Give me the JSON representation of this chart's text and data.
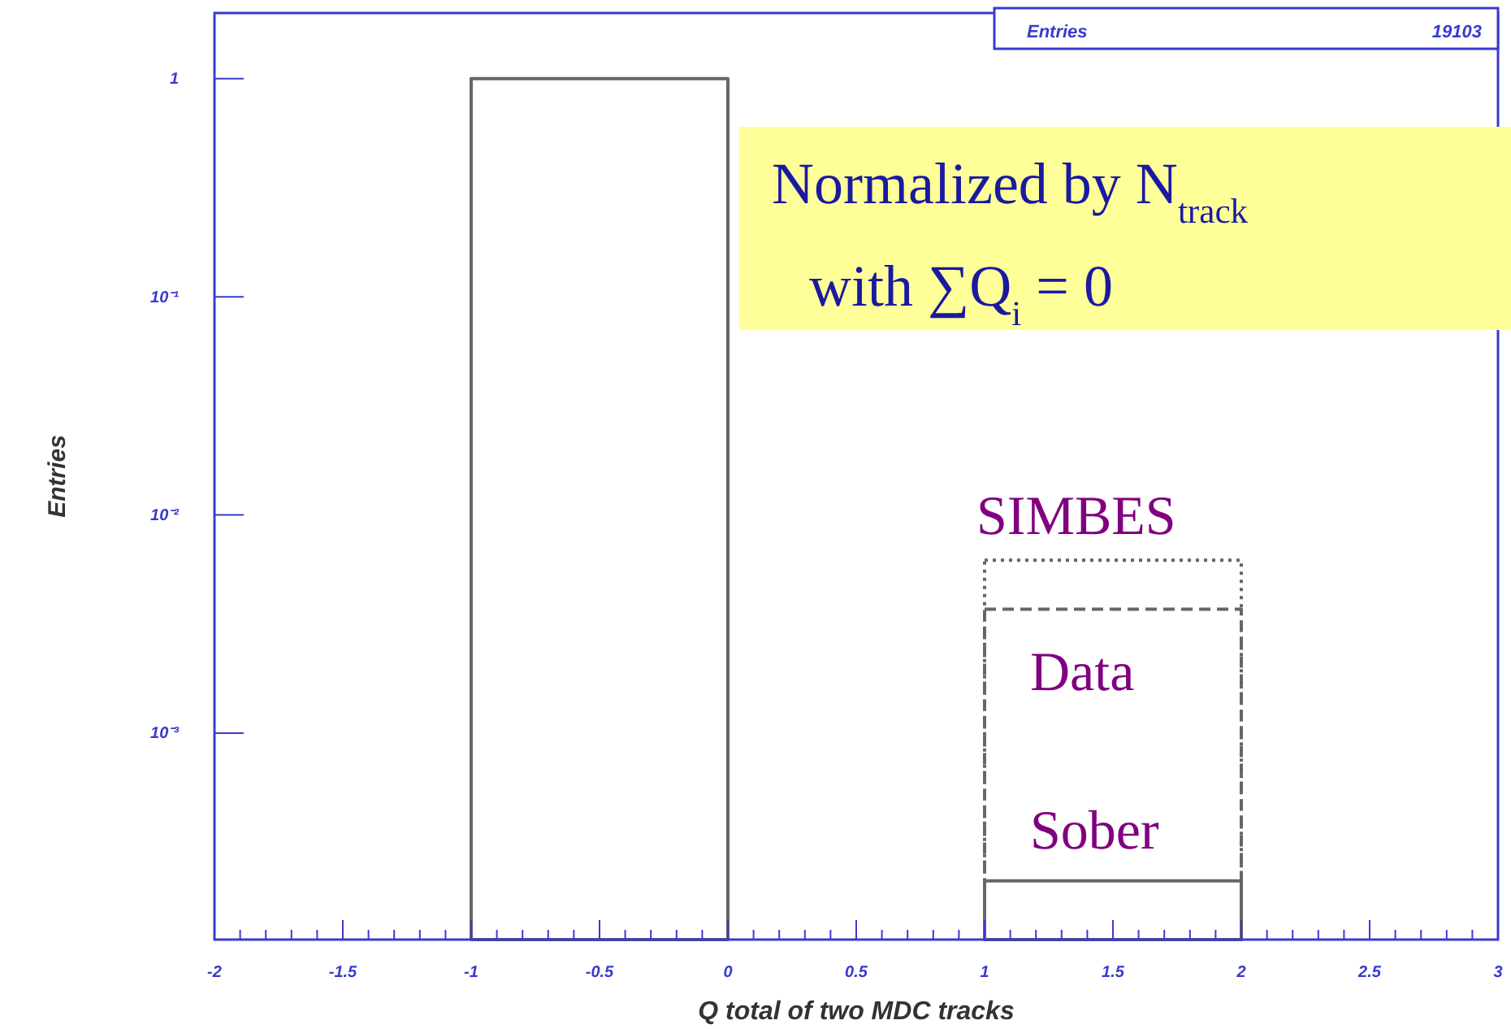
{
  "chart_data": {
    "type": "histogram",
    "xlabel": "Q total of two MDC tracks",
    "ylabel": "Entries",
    "annotations": [
      "Entries",
      "19103",
      "Normalized by  N$_{track}$",
      "with  ∑Q$_{i}$ = 0"
    ],
    "bins": [
      -1,
      0,
      1,
      2
    ],
    "series": [
      {
        "name": "SIMBES",
        "color": "#666666",
        "line_style": "dotted",
        "values": [
          null,
          null,
          0.0062
        ]
      },
      {
        "name": "Data",
        "color": "#666666",
        "line_style": "dashed",
        "values": [
          null,
          null,
          0.0037
        ]
      },
      {
        "name": "Sober",
        "color": "#666666",
        "line_style": "solid",
        "values": [
          1,
          null,
          0.00021
        ]
      }
    ],
    "log": true,
    "ylim": [
      0.000113,
      2
    ],
    "yticks": [
      {
        "value": 1,
        "label": "1"
      },
      {
        "value": 0.1,
        "label": "10⁻¹"
      },
      {
        "value": 0.01,
        "label": "10⁻²"
      },
      {
        "value": 0.001,
        "label": "10⁻³"
      }
    ],
    "xlim": [
      -2,
      3
    ],
    "xticks": [
      -2,
      -1.5,
      -1,
      -0.5,
      0,
      0.5,
      1,
      1.5,
      2,
      2.5,
      3,
      {
        "value": -1.9,
        "label": null
      },
      {
        "value": -1.8,
        "label": null
      },
      {
        "value": -1.7,
        "label": null
      },
      {
        "value": -1.6,
        "label": null
      },
      {
        "value": -1.4,
        "label": null
      },
      {
        "value": -1.3,
        "label": null
      },
      {
        "value": -1.2,
        "label": null
      },
      {
        "value": -1.1,
        "label": null
      },
      {
        "value": -0.9,
        "label": null
      },
      {
        "value": -0.8,
        "label": null
      },
      {
        "value": -0.7,
        "label": null
      },
      {
        "value": -0.6,
        "label": null
      },
      {
        "value": -0.4,
        "label": null
      },
      {
        "value": -0.3,
        "label": null
      },
      {
        "value": -0.2,
        "label": null
      },
      {
        "value": -0.1,
        "label": null
      },
      {
        "value": 0.1,
        "label": null
      },
      {
        "value": 0.2,
        "label": null
      },
      {
        "value": 0.3,
        "label": null
      },
      {
        "value": 0.4,
        "label": null
      },
      {
        "value": 0.6,
        "label": null
      },
      {
        "value": 0.7,
        "label": null
      },
      {
        "value": 0.8,
        "label": null
      },
      {
        "value": 0.9,
        "label": null
      },
      {
        "value": 1.1,
        "label": null
      },
      {
        "value": 1.2,
        "label": null
      },
      {
        "value": 1.3,
        "label": null
      },
      {
        "value": 1.4,
        "label": null
      },
      {
        "value": 1.6,
        "label": null
      },
      {
        "value": 1.7,
        "label": null
      },
      {
        "value": 1.8,
        "label": null
      },
      {
        "value": 1.9,
        "label": null
      },
      {
        "value": 2.1,
        "label": null
      },
      {
        "value": 2.2,
        "label": null
      },
      {
        "value": 2.3,
        "label": null
      },
      {
        "value": 2.4,
        "label": null
      },
      {
        "value": 2.6,
        "label": null
      },
      {
        "value": 2.7,
        "label": null
      },
      {
        "value": 2.8,
        "label": null
      },
      {
        "value": 2.9,
        "label": null
      }
    ],
    "grid": false
  }
}
